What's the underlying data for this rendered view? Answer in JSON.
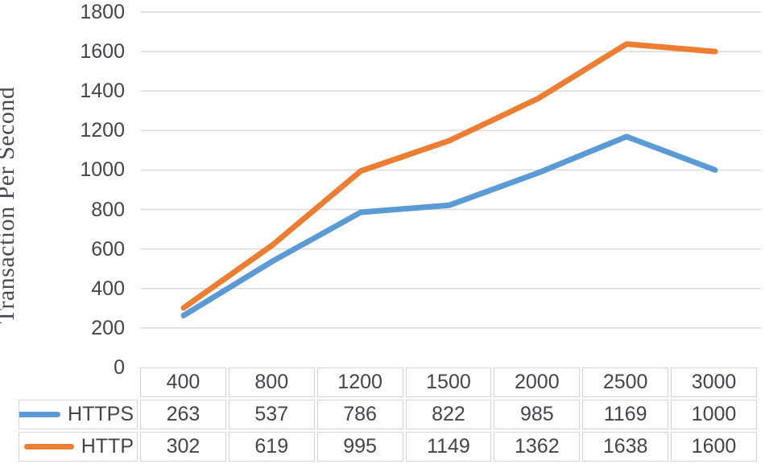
{
  "chart_data": {
    "type": "line",
    "title": "",
    "xlabel": "",
    "ylabel": "Transaction Per Second",
    "categories": [
      "400",
      "800",
      "1200",
      "1500",
      "2000",
      "2500",
      "3000"
    ],
    "series": [
      {
        "name": "HTTPS",
        "color": "#5B9BD5",
        "values": [
          263,
          537,
          786,
          822,
          985,
          1169,
          1000
        ]
      },
      {
        "name": "HTTP",
        "color": "#ED7D31",
        "values": [
          302,
          619,
          995,
          1149,
          1362,
          1638,
          1600
        ]
      }
    ],
    "ylim": [
      0,
      1800
    ],
    "yticks": [
      1800,
      1600,
      1400,
      1200,
      1000,
      800,
      600,
      400,
      200,
      0
    ],
    "grid": true,
    "gridline_color": "#d9d9d9",
    "table_border_color": "#d4d4d4",
    "text_color": "#44444c",
    "axis_title_color": "#4a4a55",
    "legend_position": "table-left",
    "line_width": 7
  }
}
